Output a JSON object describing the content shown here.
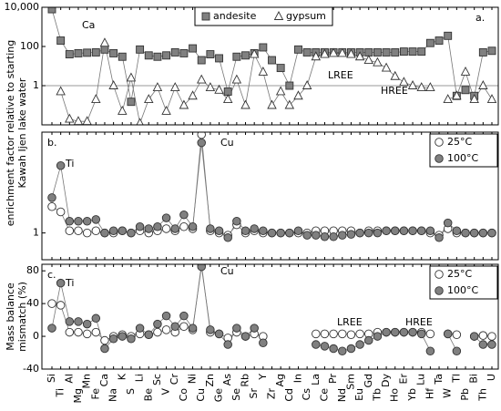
{
  "chart_data": [
    {
      "type": "scatter",
      "scale": "log",
      "ylim": [
        0.01,
        10000
      ],
      "yticks": [
        {
          "value": 10000,
          "label": "10,000"
        },
        100,
        1
      ],
      "hline": 1,
      "ylabel": [
        "enrichment factor relative to starting",
        "Kawah Ijen lake water"
      ],
      "panel_label": "a.",
      "annotations": [
        "Ca",
        "LREE",
        "HREE"
      ],
      "legend": "top-center",
      "series": [
        {
          "name": "andesite",
          "marker": "square",
          "color": "#808080",
          "values": [
            8000,
            200,
            40,
            45,
            48,
            50,
            70,
            45,
            30,
            0.15,
            70,
            35,
            30,
            35,
            50,
            45,
            80,
            20,
            40,
            25,
            0.5,
            30,
            35,
            45,
            90,
            20,
            8,
            1,
            70,
            50,
            50,
            50,
            50,
            50,
            50,
            50,
            50,
            50,
            50,
            50,
            55,
            55,
            55,
            150,
            200,
            350,
            0.3,
            0.6,
            0.3,
            50,
            60
          ]
        },
        {
          "name": "gypsum",
          "marker": "triangle",
          "color": "#ffffff",
          "values": [
            null,
            0.5,
            0.02,
            0.015,
            0.015,
            0.2,
            150,
            1,
            0.05,
            2.5,
            0.012,
            0.2,
            0.8,
            0.05,
            0.8,
            0.1,
            0.3,
            2,
            0.8,
            0.6,
            0.2,
            2,
            0.1,
            40,
            5,
            0.1,
            0.5,
            0.1,
            0.3,
            1,
            30,
            40,
            45,
            45,
            40,
            30,
            20,
            15,
            8,
            3,
            1.5,
            1,
            0.8,
            0.8,
            null,
            0.2,
            0.3,
            5,
            0.2,
            1,
            0.2
          ]
        }
      ]
    },
    {
      "type": "scatter",
      "scale": "log",
      "ylim": [
        0.55,
        9.5
      ],
      "yticks": [
        1
      ],
      "panel_label": "b.",
      "annotations": [
        "Ti",
        "Cu"
      ],
      "legend": "top-right",
      "series": [
        {
          "name": "25°C",
          "marker": "circle",
          "color": "#ffffff",
          "values": [
            1.8,
            1.6,
            1.05,
            1.05,
            1.0,
            1.05,
            1.0,
            1.0,
            1.05,
            1.0,
            1.05,
            1.0,
            1.05,
            1.1,
            1.05,
            1.15,
            1.1,
            9,
            1.05,
            1.0,
            0.95,
            1.2,
            1.0,
            1.05,
            1.0,
            1.0,
            1.0,
            1.0,
            1.0,
            1.0,
            1.05,
            1.05,
            1.05,
            1.05,
            1.05,
            1.0,
            1.05,
            1.05,
            1.05,
            1.05,
            1.05,
            1.05,
            1.05,
            1.0,
            0.95,
            1.1,
            1.0,
            1.0,
            1.0,
            1.0,
            1.0
          ]
        },
        {
          "name": "100°C",
          "marker": "circle",
          "color": "#808080",
          "values": [
            2.2,
            4.5,
            1.3,
            1.3,
            1.3,
            1.35,
            1.0,
            1.05,
            1.05,
            1.0,
            1.15,
            1.1,
            1.15,
            1.4,
            1.1,
            1.5,
            1.15,
            7.5,
            1.1,
            1.05,
            0.9,
            1.3,
            1.05,
            1.1,
            1.05,
            1.0,
            1.0,
            1.0,
            1.05,
            0.95,
            0.95,
            0.92,
            0.92,
            0.95,
            0.97,
            1.0,
            1.0,
            1.0,
            1.05,
            1.05,
            1.05,
            1.05,
            1.05,
            1.05,
            0.9,
            1.25,
            1.05,
            1.0,
            1.0,
            1.0,
            1.0
          ]
        }
      ]
    },
    {
      "type": "scatter",
      "scale": "linear",
      "ylim": [
        -40,
        88
      ],
      "yticks": [
        -40,
        0,
        40,
        80
      ],
      "ylabel": [
        "Mass balance",
        "mismatch (%)"
      ],
      "panel_label": "c.",
      "annotations": [
        "Ti",
        "Cu",
        "LREE",
        "HREE"
      ],
      "legend": "top-right",
      "categories": [
        "Si",
        "Ti",
        "Al",
        "Mg",
        "Mn",
        "Fe",
        "Ca",
        "Na",
        "K",
        "S",
        "Li",
        "Be",
        "Sc",
        "V",
        "Cr",
        "Co",
        "Ni",
        "Cu",
        "Zn",
        "Ge",
        "As",
        "Se",
        "Rb",
        "Sr",
        "Y",
        "Zr",
        "Ag",
        "Cd",
        "In",
        "Cs",
        "La",
        "Ce",
        "Pr",
        "Nd",
        "Sm",
        "Eu",
        "Gd",
        "Tb",
        "Dy",
        "Ho",
        "Er",
        "Yb",
        "Lu",
        "Hf",
        "Ta",
        "W",
        "Tl",
        "Pb",
        "Bi",
        "Th",
        "U"
      ],
      "series": [
        {
          "name": "25°C",
          "marker": "circle",
          "color": "#ffffff",
          "values": [
            40,
            38,
            5,
            5,
            3,
            5,
            -5,
            0,
            2,
            0,
            3,
            2,
            5,
            8,
            5,
            12,
            8,
            88,
            5,
            3,
            -2,
            5,
            0,
            3,
            0,
            null,
            null,
            null,
            null,
            null,
            3,
            3,
            3,
            3,
            2,
            3,
            3,
            5,
            5,
            5,
            5,
            5,
            5,
            3,
            null,
            3,
            2,
            null,
            0,
            1,
            0
          ]
        },
        {
          "name": "100°C",
          "marker": "circle",
          "color": "#808080",
          "values": [
            10,
            65,
            18,
            18,
            15,
            22,
            -15,
            -3,
            0,
            -3,
            10,
            2,
            15,
            25,
            12,
            25,
            10,
            85,
            8,
            3,
            -10,
            10,
            0,
            10,
            -8,
            null,
            null,
            null,
            null,
            null,
            -10,
            -12,
            -15,
            -18,
            -15,
            -10,
            -5,
            0,
            5,
            5,
            5,
            5,
            3,
            -18,
            null,
            3,
            -18,
            null,
            0,
            -10,
            -10
          ]
        }
      ]
    }
  ]
}
